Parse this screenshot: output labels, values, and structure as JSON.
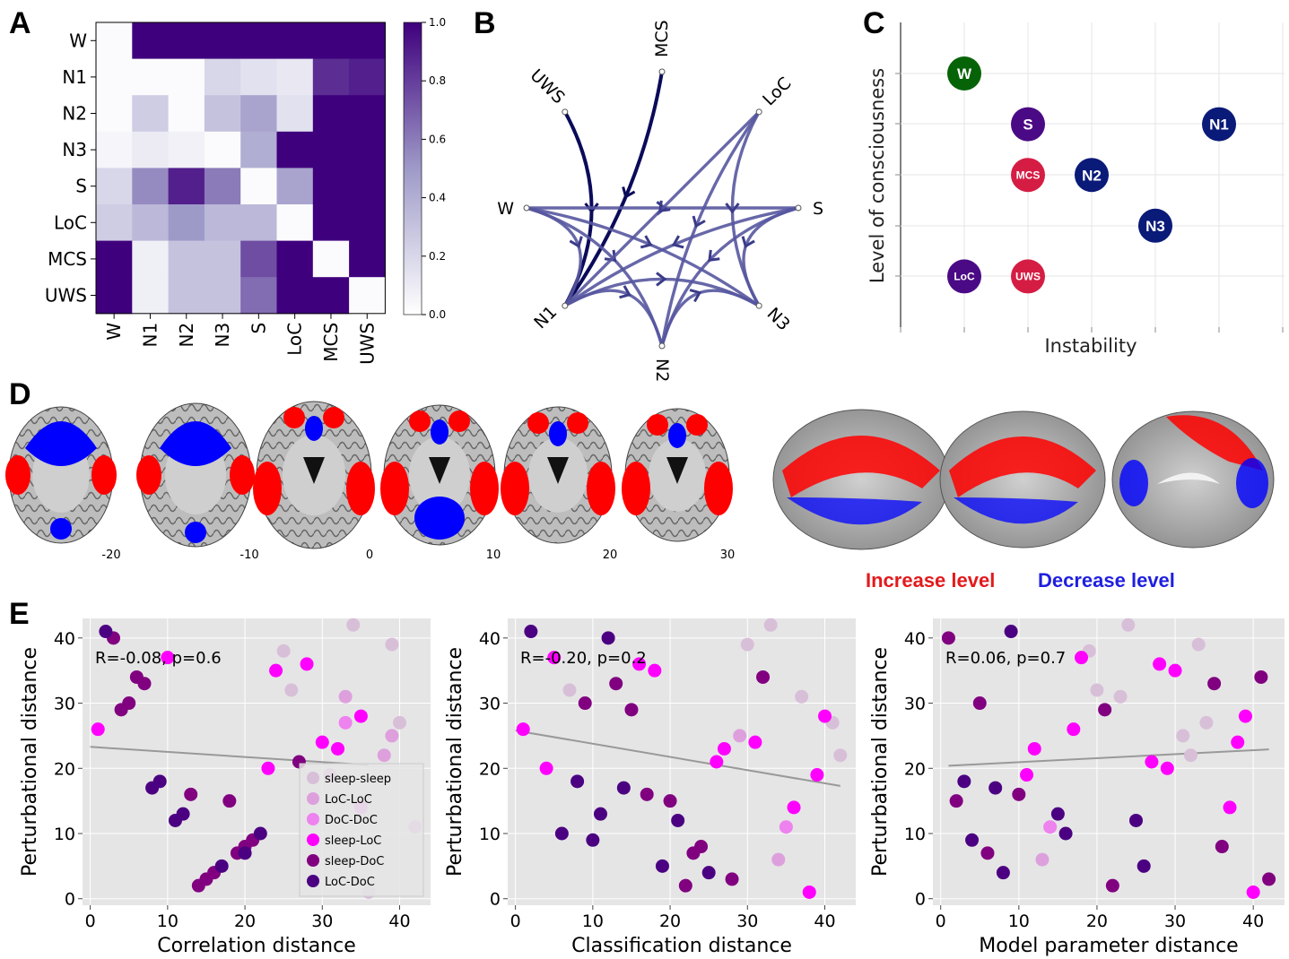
{
  "panel_labels": {
    "a": "A",
    "b": "B",
    "c": "C",
    "d": "D",
    "e": "E"
  },
  "colors": {
    "heat_low": "#ffffff",
    "heat_high": "#3f007d",
    "red_region": "#ff0000",
    "blue_region": "#0000ff",
    "increase": "#e31a1c",
    "decrease": "#1f1fe0",
    "panel_bg": "#e5e5e5",
    "fit_line": "#999999"
  },
  "chart_data": [
    {
      "type": "heatmap",
      "rows": [
        "W",
        "N1",
        "N2",
        "N3",
        "S",
        "LoC",
        "MCS",
        "UWS"
      ],
      "cols": [
        "W",
        "N1",
        "N2",
        "N3",
        "S",
        "LoC",
        "MCS",
        "UWS"
      ],
      "values": [
        [
          0.02,
          1.0,
          1.0,
          1.0,
          1.0,
          1.0,
          1.0,
          1.0
        ],
        [
          0.02,
          0.02,
          0.02,
          0.2,
          0.15,
          0.12,
          0.85,
          0.9
        ],
        [
          0.02,
          0.25,
          0.02,
          0.3,
          0.45,
          0.15,
          1.0,
          1.0
        ],
        [
          0.05,
          0.1,
          0.07,
          0.02,
          0.4,
          1.0,
          1.0,
          1.0
        ],
        [
          0.2,
          0.55,
          0.9,
          0.6,
          0.02,
          0.45,
          1.0,
          1.0
        ],
        [
          0.25,
          0.35,
          0.5,
          0.35,
          0.35,
          0.02,
          1.0,
          1.0
        ],
        [
          1.0,
          0.08,
          0.3,
          0.3,
          0.75,
          1.0,
          0.02,
          1.0
        ],
        [
          1.0,
          0.08,
          0.3,
          0.3,
          0.65,
          1.0,
          1.0,
          0.02
        ]
      ],
      "colorbar_ticks": [
        "0.0",
        "0.2",
        "0.4",
        "0.6",
        "0.8",
        "1.0"
      ],
      "vmin": 0,
      "vmax": 1
    },
    {
      "type": "network",
      "nodes": [
        "MCS",
        "LoC",
        "S",
        "N3",
        "N2",
        "N1",
        "W",
        "UWS"
      ],
      "edges": [
        [
          "UWS",
          "N1"
        ],
        [
          "MCS",
          "N1"
        ],
        [
          "W",
          "S"
        ],
        [
          "W",
          "N1"
        ],
        [
          "W",
          "N2"
        ],
        [
          "W",
          "N3"
        ],
        [
          "LoC",
          "N1"
        ],
        [
          "LoC",
          "N2"
        ],
        [
          "LoC",
          "N3"
        ],
        [
          "S",
          "N1"
        ],
        [
          "S",
          "N2"
        ],
        [
          "N1",
          "N3"
        ],
        [
          "N2",
          "N3"
        ],
        [
          "N1",
          "N2"
        ],
        [
          "S",
          "N3"
        ]
      ]
    },
    {
      "type": "scatter",
      "xlabel": "Instability",
      "ylabel": "Level of consciousness",
      "points": [
        {
          "label": "W",
          "x": 1,
          "y": 5,
          "color": "#076307"
        },
        {
          "label": "S",
          "x": 2,
          "y": 4,
          "color": "#4b0a85"
        },
        {
          "label": "N1",
          "x": 5,
          "y": 4,
          "color": "#0a1a78"
        },
        {
          "label": "MCS",
          "x": 2,
          "y": 3,
          "color": "#d51d44"
        },
        {
          "label": "N2",
          "x": 3,
          "y": 3,
          "color": "#0a1a78"
        },
        {
          "label": "N3",
          "x": 4,
          "y": 2,
          "color": "#0a1a78"
        },
        {
          "label": "LoC",
          "x": 1,
          "y": 1,
          "color": "#4b0a85"
        },
        {
          "label": "UWS",
          "x": 2,
          "y": 1,
          "color": "#d51d44"
        }
      ]
    },
    {
      "type": "scatter",
      "xlabel": "Correlation distance",
      "ylabel": "Perturbational distance",
      "stat": "R=-0.08, p=0.6",
      "xlim": [
        -1,
        44
      ],
      "ylim": [
        -1,
        43
      ],
      "xticks": [
        "0",
        "10",
        "20",
        "30",
        "40"
      ],
      "yticks": [
        "0",
        "10",
        "20",
        "30",
        "40"
      ],
      "fit": [
        [
          0,
          23.3
        ],
        [
          36,
          20.5
        ]
      ],
      "groups": [
        {
          "name": "sleep-sleep",
          "color": "#d8bfd8",
          "points": [
            [
              25,
              38
            ],
            [
              26,
              32
            ],
            [
              34,
              42
            ],
            [
              39,
              39
            ],
            [
              40,
              27
            ],
            [
              36,
              1
            ]
          ]
        },
        {
          "name": "LoC-LoC",
          "color": "#dda0dd",
          "points": [
            [
              31,
              19
            ],
            [
              33,
              31
            ],
            [
              38,
              22
            ],
            [
              42,
              11
            ],
            [
              39,
              25
            ]
          ]
        },
        {
          "name": "DoC-DoC",
          "color": "#ee82ee",
          "points": [
            [
              35,
              14
            ],
            [
              33,
              27
            ]
          ]
        },
        {
          "name": "sleep-LoC",
          "color": "#ff00ff",
          "points": [
            [
              1,
              26
            ],
            [
              10,
              37
            ],
            [
              24,
              35
            ],
            [
              28,
              36
            ],
            [
              30,
              24
            ],
            [
              32,
              23
            ],
            [
              35,
              28
            ],
            [
              23,
              20
            ]
          ]
        },
        {
          "name": "sleep-DoC",
          "color": "#800080",
          "points": [
            [
              3,
              40
            ],
            [
              4,
              29
            ],
            [
              5,
              30
            ],
            [
              6,
              34
            ],
            [
              7,
              33
            ],
            [
              13,
              16
            ],
            [
              18,
              15
            ],
            [
              14,
              2
            ],
            [
              15,
              3
            ],
            [
              16,
              4
            ],
            [
              19,
              7
            ],
            [
              20,
              8
            ],
            [
              21,
              9
            ],
            [
              27,
              21
            ]
          ]
        },
        {
          "name": "LoC-DoC",
          "color": "#4b0082",
          "points": [
            [
              2,
              41
            ],
            [
              8,
              17
            ],
            [
              9,
              18
            ],
            [
              11,
              12
            ],
            [
              12,
              13
            ],
            [
              17,
              5
            ],
            [
              22,
              10
            ],
            [
              20,
              7
            ]
          ]
        }
      ]
    },
    {
      "type": "scatter",
      "xlabel": "Classification distance",
      "ylabel": "Perturbational distance",
      "stat": "R=-0.20, p=0.2",
      "xlim": [
        -1,
        44
      ],
      "ylim": [
        -1,
        43
      ],
      "xticks": [
        "0",
        "10",
        "20",
        "30",
        "40"
      ],
      "yticks": [
        "0",
        "10",
        "20",
        "30",
        "40"
      ],
      "fit": [
        [
          0,
          25.8
        ],
        [
          42,
          17.3
        ]
      ],
      "groups": [
        {
          "name": "sleep-sleep",
          "color": "#d8bfd8",
          "points": [
            [
              7,
              32
            ],
            [
              30,
              39
            ],
            [
              33,
              42
            ],
            [
              37,
              31
            ],
            [
              41,
              27
            ],
            [
              42,
              22
            ]
          ]
        },
        {
          "name": "LoC-LoC",
          "color": "#dda0dd",
          "points": [
            [
              29,
              25
            ],
            [
              34,
              6
            ]
          ]
        },
        {
          "name": "DoC-DoC",
          "color": "#ee82ee",
          "points": [
            [
              35,
              11
            ]
          ]
        },
        {
          "name": "sleep-LoC",
          "color": "#ff00ff",
          "points": [
            [
              1,
              26
            ],
            [
              4,
              20
            ],
            [
              5,
              37
            ],
            [
              16,
              36
            ],
            [
              18,
              35
            ],
            [
              26,
              21
            ],
            [
              27,
              23
            ],
            [
              31,
              24
            ],
            [
              36,
              14
            ],
            [
              38,
              1
            ],
            [
              39,
              19
            ],
            [
              40,
              28
            ]
          ]
        },
        {
          "name": "sleep-DoC",
          "color": "#800080",
          "points": [
            [
              9,
              30
            ],
            [
              13,
              33
            ],
            [
              15,
              29
            ],
            [
              17,
              16
            ],
            [
              20,
              15
            ],
            [
              22,
              2
            ],
            [
              23,
              7
            ],
            [
              24,
              8
            ],
            [
              28,
              3
            ],
            [
              32,
              34
            ]
          ]
        },
        {
          "name": "LoC-DoC",
          "color": "#4b0082",
          "points": [
            [
              2,
              41
            ],
            [
              6,
              10
            ],
            [
              8,
              18
            ],
            [
              10,
              9
            ],
            [
              11,
              13
            ],
            [
              12,
              40
            ],
            [
              14,
              17
            ],
            [
              19,
              5
            ],
            [
              21,
              12
            ],
            [
              25,
              4
            ]
          ]
        }
      ]
    },
    {
      "type": "scatter",
      "xlabel": "Model parameter distance",
      "ylabel": "Perturbational distance",
      "stat": "R=0.06, p=0.7",
      "xlim": [
        -1,
        44
      ],
      "ylim": [
        -1,
        43
      ],
      "xticks": [
        "0",
        "10",
        "20",
        "30",
        "40"
      ],
      "yticks": [
        "0",
        "10",
        "20",
        "30",
        "40"
      ],
      "fit": [
        [
          1,
          20.4
        ],
        [
          42,
          22.9
        ]
      ],
      "groups": [
        {
          "name": "sleep-sleep",
          "color": "#d8bfd8",
          "points": [
            [
              19,
              38
            ],
            [
              20,
              32
            ],
            [
              23,
              31
            ],
            [
              24,
              42
            ],
            [
              33,
              39
            ],
            [
              31,
              25
            ],
            [
              34,
              27
            ],
            [
              32,
              22
            ]
          ]
        },
        {
          "name": "LoC-LoC",
          "color": "#dda0dd",
          "points": [
            [
              13,
              6
            ]
          ]
        },
        {
          "name": "DoC-DoC",
          "color": "#ee82ee",
          "points": [
            [
              14,
              11
            ]
          ]
        },
        {
          "name": "sleep-LoC",
          "color": "#ff00ff",
          "points": [
            [
              11,
              19
            ],
            [
              12,
              23
            ],
            [
              17,
              26
            ],
            [
              18,
              37
            ],
            [
              27,
              21
            ],
            [
              28,
              36
            ],
            [
              29,
              20
            ],
            [
              30,
              35
            ],
            [
              37,
              14
            ],
            [
              38,
              24
            ],
            [
              39,
              28
            ],
            [
              40,
              1
            ]
          ]
        },
        {
          "name": "sleep-DoC",
          "color": "#800080",
          "points": [
            [
              1,
              40
            ],
            [
              2,
              15
            ],
            [
              5,
              30
            ],
            [
              6,
              7
            ],
            [
              10,
              16
            ],
            [
              21,
              29
            ],
            [
              22,
              2
            ],
            [
              35,
              33
            ],
            [
              36,
              8
            ],
            [
              41,
              34
            ],
            [
              42,
              3
            ]
          ]
        },
        {
          "name": "LoC-DoC",
          "color": "#4b0082",
          "points": [
            [
              3,
              18
            ],
            [
              4,
              9
            ],
            [
              7,
              17
            ],
            [
              8,
              4
            ],
            [
              9,
              41
            ],
            [
              15,
              13
            ],
            [
              16,
              10
            ],
            [
              25,
              12
            ],
            [
              26,
              5
            ]
          ]
        }
      ]
    }
  ],
  "panel_d": {
    "slice_labels": [
      "-20",
      "-10",
      "0",
      "10",
      "20",
      "30"
    ],
    "increase_label": "Increase level",
    "decrease_label": "Decrease level"
  }
}
